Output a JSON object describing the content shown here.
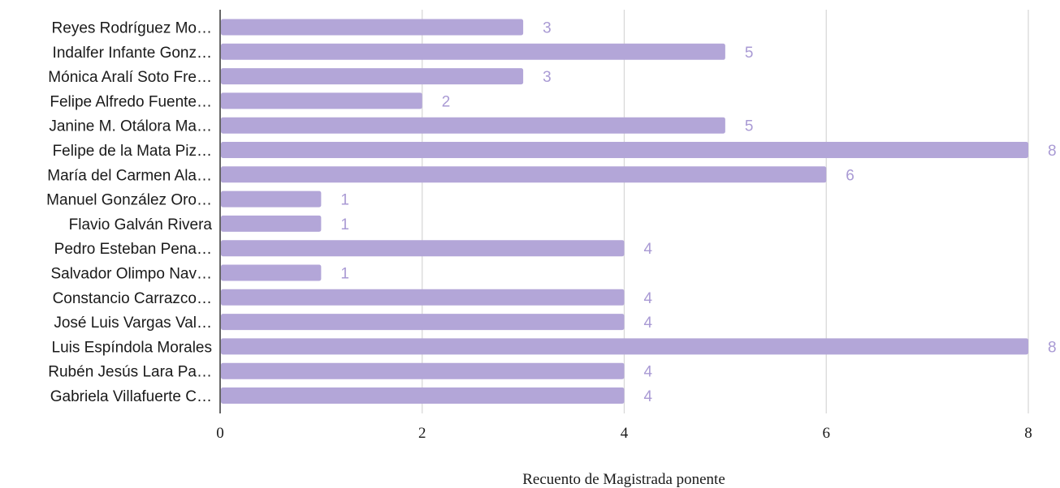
{
  "chart_data": {
    "type": "bar",
    "orientation": "horizontal",
    "title": "",
    "xlabel": "Recuento de Magistrada ponente",
    "ylabel": "",
    "xlim": [
      0,
      8
    ],
    "xticks": [
      "0",
      "2",
      "4",
      "6",
      "8"
    ],
    "grid": true,
    "legend": "none",
    "bar_color": "#b3a6d8",
    "value_label_color": "#a99ad4",
    "categories": [
      "Reyes Rodríguez Mo…",
      "Indalfer Infante Gonz…",
      "Mónica Aralí Soto Fre…",
      "Felipe Alfredo Fuente…",
      "Janine M. Otálora Ma…",
      "Felipe de la Mata Piz…",
      "María del Carmen Ala…",
      "Manuel González Oro…",
      "Flavio Galván Rivera",
      "Pedro Esteban Pena…",
      "Salvador Olimpo Nav…",
      "Constancio Carrazco…",
      "José Luis Vargas Val…",
      "Luis Espíndola Morales",
      "Rubén Jesús Lara Pa…",
      "Gabriela Villafuerte C…"
    ],
    "values": [
      3,
      5,
      3,
      2,
      5,
      8,
      6,
      1,
      1,
      4,
      1,
      4,
      4,
      8,
      4,
      4
    ]
  }
}
